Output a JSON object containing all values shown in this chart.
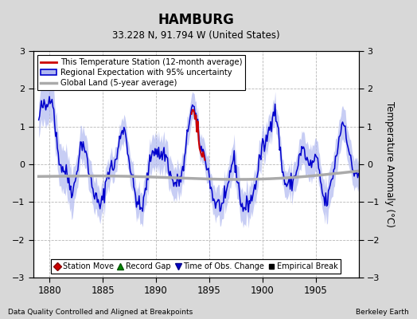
{
  "title": "HAMBURG",
  "subtitle": "33.228 N, 91.794 W (United States)",
  "xlabel_left": "Data Quality Controlled and Aligned at Breakpoints",
  "xlabel_right": "Berkeley Earth",
  "ylabel": "Temperature Anomaly (°C)",
  "xlim": [
    1878.5,
    1909.0
  ],
  "ylim": [
    -3,
    3
  ],
  "yticks": [
    -3,
    -2,
    -1,
    0,
    1,
    2,
    3
  ],
  "xticks": [
    1880,
    1885,
    1890,
    1895,
    1900,
    1905
  ],
  "bg_color": "#d8d8d8",
  "plot_bg_color": "#ffffff",
  "grid_color": "#b8b8b8",
  "blue_line_color": "#0000cc",
  "blue_fill_color": "#b0b8f0",
  "red_line_color": "#cc0000",
  "gray_line_color": "#aaaaaa",
  "legend1_label": "This Temperature Station (12-month average)",
  "legend2_label": "Regional Expectation with 95% uncertainty",
  "legend3_label": "Global Land (5-year average)",
  "legend_icon1": "Station Move",
  "legend_icon2": "Record Gap",
  "legend_icon3": "Time of Obs. Change",
  "legend_icon4": "Empirical Break",
  "time_start": 1879.0,
  "time_end": 1909.0,
  "n_points": 361,
  "seed": 42
}
